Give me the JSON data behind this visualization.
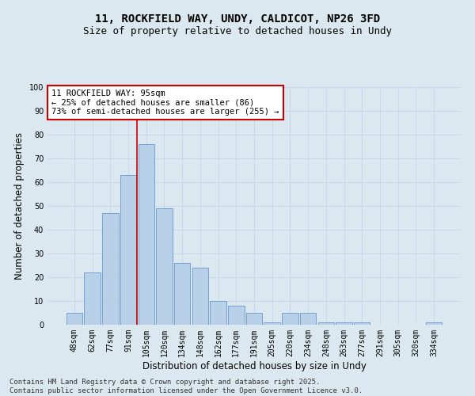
{
  "title_line1": "11, ROCKFIELD WAY, UNDY, CALDICOT, NP26 3FD",
  "title_line2": "Size of property relative to detached houses in Undy",
  "xlabel": "Distribution of detached houses by size in Undy",
  "ylabel": "Number of detached properties",
  "categories": [
    "48sqm",
    "62sqm",
    "77sqm",
    "91sqm",
    "105sqm",
    "120sqm",
    "134sqm",
    "148sqm",
    "162sqm",
    "177sqm",
    "191sqm",
    "205sqm",
    "220sqm",
    "234sqm",
    "248sqm",
    "263sqm",
    "277sqm",
    "291sqm",
    "305sqm",
    "320sqm",
    "334sqm"
  ],
  "values": [
    5,
    22,
    47,
    63,
    76,
    49,
    26,
    24,
    10,
    8,
    5,
    1,
    5,
    5,
    1,
    1,
    1,
    0,
    0,
    0,
    1
  ],
  "bar_color": "#b8d0e8",
  "bar_edge_color": "#6699cc",
  "vline_pos": 3.5,
  "annotation_text": "11 ROCKFIELD WAY: 95sqm\n← 25% of detached houses are smaller (86)\n73% of semi-detached houses are larger (255) →",
  "annotation_box_facecolor": "#ffffff",
  "annotation_box_edgecolor": "#cc0000",
  "vline_color": "#cc0000",
  "ylim": [
    0,
    100
  ],
  "yticks": [
    0,
    10,
    20,
    30,
    40,
    50,
    60,
    70,
    80,
    90,
    100
  ],
  "grid_color": "#c8d8ea",
  "background_color": "#dce8f0",
  "footer_text": "Contains HM Land Registry data © Crown copyright and database right 2025.\nContains public sector information licensed under the Open Government Licence v3.0.",
  "title_fontsize": 10,
  "subtitle_fontsize": 9,
  "axis_label_fontsize": 8.5,
  "tick_fontsize": 7,
  "annotation_fontsize": 7.5,
  "footer_fontsize": 6.5
}
